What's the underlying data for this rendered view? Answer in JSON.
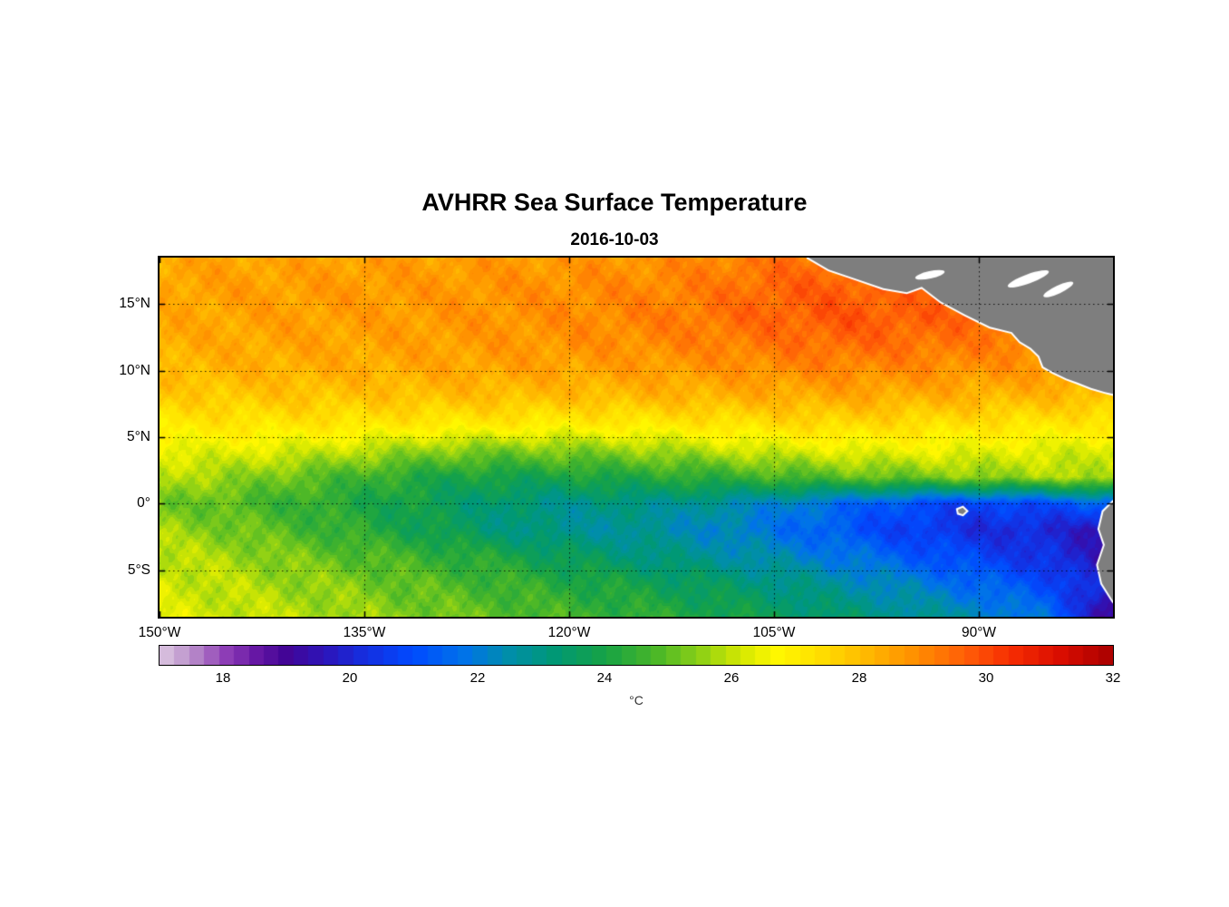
{
  "chart_data": {
    "type": "heatmap",
    "title": "AVHRR Sea Surface Temperature",
    "subtitle": "2016-10-03",
    "variable": "Sea Surface Temperature",
    "units": "°C",
    "lon_range": [
      -150,
      -80.2
    ],
    "lat_range": [
      -8.5,
      18.5
    ],
    "grid": "dotted",
    "x_ticks": [
      {
        "value": -150,
        "label": "150°W"
      },
      {
        "value": -135,
        "label": "135°W"
      },
      {
        "value": -120,
        "label": "120°W"
      },
      {
        "value": -105,
        "label": "105°W"
      },
      {
        "value": -90,
        "label": "90°W"
      }
    ],
    "y_ticks": [
      {
        "value": 15,
        "label": "15°N"
      },
      {
        "value": 10,
        "label": "10°N"
      },
      {
        "value": 5,
        "label": "5°N"
      },
      {
        "value": 0,
        "label": "0°"
      },
      {
        "value": -5,
        "label": "5°S"
      }
    ],
    "colorbar": {
      "min": 17,
      "max": 32,
      "ticks": [
        18,
        20,
        22,
        24,
        26,
        28,
        30,
        32
      ],
      "label": "°C",
      "levels": 64
    },
    "colormap_stops": [
      [
        17.0,
        221,
        201,
        225
      ],
      [
        17.5,
        186,
        143,
        202
      ],
      [
        18.0,
        146,
        66,
        184
      ],
      [
        18.5,
        104,
        24,
        165
      ],
      [
        19.0,
        66,
        5,
        150
      ],
      [
        19.6,
        45,
        20,
        185
      ],
      [
        20.2,
        22,
        45,
        222
      ],
      [
        21.0,
        0,
        75,
        255
      ],
      [
        21.8,
        0,
        115,
        232
      ],
      [
        22.5,
        0,
        142,
        170
      ],
      [
        23.2,
        0,
        152,
        118
      ],
      [
        24.0,
        22,
        162,
        70
      ],
      [
        24.8,
        72,
        182,
        40
      ],
      [
        25.5,
        140,
        208,
        22
      ],
      [
        26.1,
        208,
        230,
        2
      ],
      [
        26.7,
        255,
        248,
        0
      ],
      [
        27.4,
        255,
        222,
        0
      ],
      [
        28.1,
        255,
        186,
        0
      ],
      [
        28.9,
        255,
        142,
        0
      ],
      [
        29.7,
        255,
        92,
        8
      ],
      [
        30.4,
        246,
        44,
        2
      ],
      [
        31.2,
        216,
        12,
        0
      ],
      [
        32.0,
        168,
        0,
        0
      ]
    ],
    "land_color": "#7e7e7e",
    "coast_halo_color": "#ffffff",
    "lons": [
      -150,
      -145,
      -140,
      -135,
      -130,
      -125,
      -120,
      -115,
      -110,
      -105,
      -100,
      -95,
      -90,
      -85,
      -80
    ],
    "lats": [
      18.5,
      16,
      14,
      12,
      10,
      8,
      6,
      4,
      2,
      0,
      -2,
      -4,
      -6,
      -8.5
    ],
    "sst": [
      [
        28.4,
        28.5,
        28.5,
        28.6,
        28.6,
        28.7,
        28.7,
        28.8,
        29.0,
        29.3,
        29.4,
        29.3,
        29.2,
        29.1,
        29.0
      ],
      [
        28.5,
        28.6,
        28.6,
        28.7,
        28.7,
        28.8,
        28.9,
        29.0,
        29.2,
        29.6,
        29.7,
        29.5,
        29.3,
        29.2,
        29.1
      ],
      [
        28.4,
        28.5,
        28.6,
        28.6,
        28.7,
        28.8,
        28.9,
        29.1,
        29.3,
        29.6,
        29.8,
        29.7,
        29.5,
        29.3,
        29.2
      ],
      [
        28.3,
        28.4,
        28.5,
        28.5,
        28.6,
        28.7,
        28.8,
        28.9,
        29.1,
        29.3,
        29.5,
        29.4,
        29.2,
        29.1,
        29.0
      ],
      [
        28.1,
        28.2,
        28.3,
        28.3,
        28.4,
        28.5,
        28.5,
        28.6,
        28.7,
        28.9,
        29.0,
        28.9,
        28.8,
        28.7,
        28.6
      ],
      [
        27.7,
        27.8,
        27.9,
        27.9,
        28.0,
        28.0,
        28.0,
        28.1,
        28.2,
        28.3,
        28.4,
        28.3,
        28.2,
        28.1,
        28.0
      ],
      [
        27.1,
        27.2,
        27.2,
        27.2,
        27.1,
        27.1,
        27.0,
        27.1,
        27.2,
        27.4,
        27.5,
        27.4,
        27.3,
        27.2,
        27.1
      ],
      [
        26.4,
        26.4,
        26.2,
        25.9,
        25.5,
        25.3,
        25.4,
        25.6,
        25.9,
        26.2,
        26.4,
        26.5,
        26.4,
        26.3,
        26.2
      ],
      [
        25.9,
        25.6,
        25.1,
        24.6,
        24.1,
        23.9,
        24.0,
        24.2,
        24.4,
        24.7,
        25.0,
        25.2,
        25.5,
        25.7,
        25.9
      ],
      [
        25.3,
        24.9,
        24.5,
        24.1,
        23.7,
        23.2,
        22.9,
        23.0,
        22.7,
        22.2,
        21.6,
        21.0,
        20.7,
        21.0,
        21.5
      ],
      [
        25.7,
        25.3,
        24.8,
        24.3,
        23.8,
        23.2,
        22.8,
        22.7,
        22.3,
        21.8,
        21.2,
        20.6,
        20.2,
        20.0,
        19.6
      ],
      [
        26.0,
        25.7,
        25.3,
        24.9,
        24.5,
        24.1,
        23.6,
        23.2,
        22.8,
        22.4,
        21.9,
        21.3,
        20.8,
        20.3,
        19.2
      ],
      [
        26.2,
        25.9,
        25.6,
        25.3,
        24.9,
        24.6,
        24.2,
        23.9,
        23.5,
        23.1,
        22.6,
        22.1,
        21.5,
        20.9,
        19.8
      ],
      [
        26.3,
        26.1,
        25.9,
        25.6,
        25.3,
        25.0,
        24.7,
        24.4,
        24.1,
        23.7,
        23.3,
        22.9,
        22.4,
        21.7,
        18.8
      ]
    ],
    "land": [
      {
        "name": "central-america",
        "points": [
          [
            -102.5,
            18.5
          ],
          [
            -101.0,
            17.6
          ],
          [
            -99.0,
            16.9
          ],
          [
            -97.0,
            16.2
          ],
          [
            -95.3,
            15.9
          ],
          [
            -94.2,
            16.3
          ],
          [
            -92.8,
            15.2
          ],
          [
            -91.0,
            14.2
          ],
          [
            -89.2,
            13.3
          ],
          [
            -87.6,
            12.9
          ],
          [
            -87.0,
            12.2
          ],
          [
            -86.2,
            11.7
          ],
          [
            -85.6,
            11.1
          ],
          [
            -85.3,
            10.3
          ],
          [
            -84.6,
            9.9
          ],
          [
            -83.6,
            9.4
          ],
          [
            -82.8,
            9.1
          ],
          [
            -81.8,
            8.7
          ],
          [
            -80.8,
            8.4
          ],
          [
            -80.0,
            8.2
          ],
          [
            -79.0,
            8.6
          ],
          [
            -79.0,
            19.5
          ],
          [
            -102.5,
            19.5
          ]
        ]
      },
      {
        "name": "south-america",
        "points": [
          [
            -79.0,
            0.8
          ],
          [
            -80.1,
            0.2
          ],
          [
            -80.9,
            -0.6
          ],
          [
            -81.2,
            -1.9
          ],
          [
            -80.8,
            -3.1
          ],
          [
            -81.3,
            -4.6
          ],
          [
            -81.0,
            -6.0
          ],
          [
            -80.2,
            -7.3
          ],
          [
            -79.0,
            -8.8
          ]
        ]
      },
      {
        "name": "galapagos-island",
        "points": [
          [
            -91.55,
            -0.45
          ],
          [
            -91.2,
            -0.3
          ],
          [
            -90.95,
            -0.55
          ],
          [
            -91.2,
            -0.8
          ],
          [
            -91.5,
            -0.7
          ]
        ]
      }
    ],
    "missing_data_patches": [
      {
        "lon": -86.4,
        "lat": 16.9,
        "rx": 1.6,
        "ry": 0.35,
        "rot": -20
      },
      {
        "lon": -84.2,
        "lat": 16.1,
        "rx": 1.2,
        "ry": 0.3,
        "rot": -25
      },
      {
        "lon": -93.6,
        "lat": 17.2,
        "rx": 1.1,
        "ry": 0.28,
        "rot": -12
      }
    ]
  }
}
